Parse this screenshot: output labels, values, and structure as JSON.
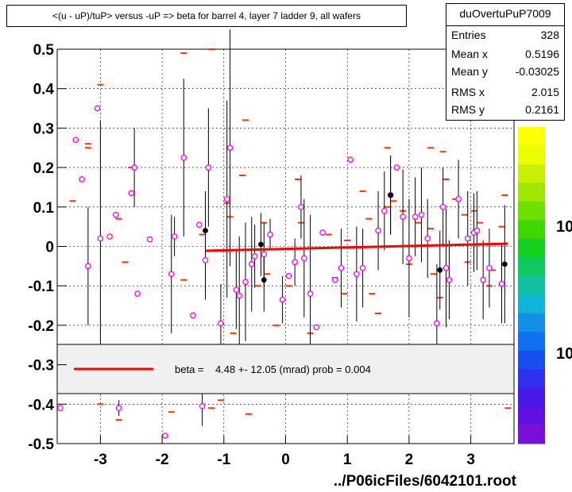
{
  "title": "<(u - uP)/tuP> versus  -uP => beta for barrel 4, layer 7 ladder 9, all wafers",
  "stats": {
    "name": "duOvertuPuP7009",
    "rows": [
      {
        "label": "Entries",
        "value": "328"
      },
      {
        "label": "Mean x",
        "value": "0.5196"
      },
      {
        "label": "Mean y",
        "value": "-0.03025"
      },
      {
        "label": "RMS x",
        "value": "2.015"
      },
      {
        "label": "RMS y",
        "value": "0.2161"
      }
    ]
  },
  "fit_legend": "beta =    4.48 +- 12.05 (mrad) prob = 0.004",
  "footer": "../P06icFiles/6042101.root",
  "colors": {
    "fit_line": "#ff0000",
    "marker_open": "#ff00ff",
    "marker_filled": "#000000",
    "hist_dash": "#ff3300"
  },
  "chart_data": {
    "type": "scatter",
    "xlim": [
      -3.7,
      3.7
    ],
    "ylim": [
      -0.5,
      0.5
    ],
    "x_ticks": [
      -3,
      -2,
      -1,
      0,
      1,
      2,
      3
    ],
    "x_tick_labels": [
      "-3",
      "-2",
      "-1",
      "0",
      "1",
      "2",
      "3"
    ],
    "y_ticks": [
      -0.5,
      -0.4,
      -0.3,
      -0.2,
      -0.1,
      0,
      0.1,
      0.2,
      0.3,
      0.4,
      0.5
    ],
    "y_tick_labels": [
      "-0.5",
      "-0.4",
      "-0.3",
      "-0.2",
      "-0.1",
      "0",
      "0.1",
      "0.2",
      "0.3",
      "0.4",
      "0.5"
    ],
    "grid": true,
    "colorbar_labels": [
      "10",
      "10"
    ],
    "fit_line": {
      "x": [
        -1.3,
        3.6
      ],
      "y": [
        -0.011,
        0.007
      ]
    },
    "points_open": [
      {
        "x": -3.65,
        "y": -0.41,
        "err": 0
      },
      {
        "x": -3.4,
        "y": 0.27,
        "err": 0
      },
      {
        "x": -3.3,
        "y": 0.17,
        "err": 0
      },
      {
        "x": -3.2,
        "y": -0.05,
        "err": 0.15
      },
      {
        "x": -3.05,
        "y": 0.35,
        "err": 0
      },
      {
        "x": -3.0,
        "y": 0.02,
        "err": 0.3
      },
      {
        "x": -2.85,
        "y": 0.025,
        "err": 0
      },
      {
        "x": -2.75,
        "y": 0.08,
        "err": 0
      },
      {
        "x": -2.7,
        "y": -0.41,
        "err": 0.02
      },
      {
        "x": -2.5,
        "y": 0.135,
        "err": 0
      },
      {
        "x": -2.45,
        "y": 0.2,
        "err": 0.1
      },
      {
        "x": -2.4,
        "y": -0.12,
        "err": 0
      },
      {
        "x": -2.2,
        "y": 0.018,
        "err": 0
      },
      {
        "x": -1.95,
        "y": -0.48,
        "err": 0
      },
      {
        "x": -1.85,
        "y": -0.07,
        "err": 0.15
      },
      {
        "x": -1.8,
        "y": 0.025,
        "err": 0.05
      },
      {
        "x": -1.65,
        "y": 0.225,
        "err": 0.2
      },
      {
        "x": -1.5,
        "y": -0.175,
        "err": 0
      },
      {
        "x": -1.4,
        "y": 0.055,
        "err": 0
      },
      {
        "x": -1.35,
        "y": -0.405,
        "err": 0.05
      },
      {
        "x": -1.3,
        "y": -0.035,
        "err": 0.1
      },
      {
        "x": -1.25,
        "y": 0.2,
        "err": 0.15
      },
      {
        "x": -1.05,
        "y": -0.195,
        "err": 0.1
      },
      {
        "x": -0.95,
        "y": 0.12,
        "err": 0.25
      },
      {
        "x": -0.9,
        "y": 0.25,
        "err": 0.3
      },
      {
        "x": -0.8,
        "y": -0.11,
        "err": 0.1
      },
      {
        "x": -0.75,
        "y": -0.125,
        "err": 0.15
      },
      {
        "x": -0.65,
        "y": -0.09,
        "err": 0.15
      },
      {
        "x": -0.55,
        "y": -0.045,
        "err": 0.12
      },
      {
        "x": -0.5,
        "y": -0.025,
        "err": 0.08
      },
      {
        "x": -0.35,
        "y": -0.02,
        "err": 0.08
      },
      {
        "x": -0.25,
        "y": 0.03,
        "err": 0.04
      },
      {
        "x": -0.05,
        "y": -0.135,
        "err": 0.06
      },
      {
        "x": 0.05,
        "y": -0.075,
        "err": 0
      },
      {
        "x": 0.15,
        "y": -0.04,
        "err": 0.06
      },
      {
        "x": 0.25,
        "y": 0.1,
        "err": 0.08
      },
      {
        "x": 0.3,
        "y": -0.03,
        "err": 0.15
      },
      {
        "x": 0.4,
        "y": -0.12,
        "err": 0.2
      },
      {
        "x": 0.5,
        "y": -0.205,
        "err": 0
      },
      {
        "x": 0.6,
        "y": 0.035,
        "err": 0
      },
      {
        "x": 0.8,
        "y": -0.085,
        "err": 0
      },
      {
        "x": 0.9,
        "y": -0.055,
        "err": 0.1
      },
      {
        "x": 1.05,
        "y": 0.22,
        "err": 0
      },
      {
        "x": 1.15,
        "y": -0.07,
        "err": 0.12
      },
      {
        "x": 1.25,
        "y": -0.055,
        "err": 0.1
      },
      {
        "x": 1.5,
        "y": 0.04,
        "err": 0.1
      },
      {
        "x": 1.6,
        "y": 0.09,
        "err": 0.1
      },
      {
        "x": 1.7,
        "y": 0.13,
        "err": 0.1
      },
      {
        "x": 1.8,
        "y": 0.2,
        "err": 0
      },
      {
        "x": 1.9,
        "y": 0.075,
        "err": 0.12
      },
      {
        "x": 2.0,
        "y": -0.03,
        "err": 0.15
      },
      {
        "x": 2.1,
        "y": 0.075,
        "err": 0.1
      },
      {
        "x": 2.2,
        "y": 0.08,
        "err": 0.12
      },
      {
        "x": 2.3,
        "y": 0.02,
        "err": 0.1
      },
      {
        "x": 2.45,
        "y": -0.195,
        "err": 0.15
      },
      {
        "x": 2.55,
        "y": 0.1,
        "err": 0.1
      },
      {
        "x": 2.6,
        "y": -0.055,
        "err": 0.15
      },
      {
        "x": 2.65,
        "y": -0.085,
        "err": 0.1
      },
      {
        "x": 2.8,
        "y": 0.12,
        "err": 0.1
      },
      {
        "x": 2.95,
        "y": 0.02,
        "err": 0.12
      },
      {
        "x": 3.05,
        "y": 0.035,
        "err": 0.1
      },
      {
        "x": 3.1,
        "y": 0.04,
        "err": 0.1
      },
      {
        "x": 3.2,
        "y": -0.085,
        "err": 0.1
      },
      {
        "x": 3.3,
        "y": -0.055,
        "err": 0.1
      },
      {
        "x": 3.5,
        "y": -0.095,
        "err": 0.1
      }
    ],
    "points_filled": [
      {
        "x": -1.3,
        "y": 0.04,
        "err": 0.1
      },
      {
        "x": -0.4,
        "y": 0.005,
        "err": 0.08
      },
      {
        "x": -0.35,
        "y": -0.085,
        "err": 0.08
      },
      {
        "x": 1.7,
        "y": 0.13,
        "err": 0.1
      },
      {
        "x": 2.5,
        "y": -0.06,
        "err": 0.1
      },
      {
        "x": 3.55,
        "y": -0.045,
        "err": 0.15
      }
    ],
    "dashes": [
      [
        -3.45,
        0.115
      ],
      [
        -3.2,
        0.25
      ],
      [
        -3.2,
        0.26
      ],
      [
        -3.0,
        0.41
      ],
      [
        -3.0,
        -0.4
      ],
      [
        -2.7,
        -0.44
      ],
      [
        -2.7,
        0.07
      ],
      [
        -2.6,
        -0.04
      ],
      [
        -2.5,
        0.2
      ],
      [
        -1.95,
        -0.48
      ],
      [
        -1.85,
        -0.42
      ],
      [
        -1.65,
        0.49
      ],
      [
        -1.65,
        -0.085
      ],
      [
        -1.35,
        0.03
      ],
      [
        -1.2,
        0.5
      ],
      [
        -1.2,
        -0.41
      ],
      [
        -1.05,
        -0.39
      ],
      [
        -0.95,
        0.11
      ],
      [
        -0.9,
        0.075
      ],
      [
        -0.85,
        -0.22
      ],
      [
        -0.7,
        0.18
      ],
      [
        -0.65,
        0.32
      ],
      [
        -0.6,
        -0.425
      ],
      [
        -0.45,
        -0.1
      ],
      [
        -0.35,
        0.06
      ],
      [
        -0.3,
        -0.07
      ],
      [
        -0.15,
        -0.2
      ],
      [
        0.05,
        -0.1
      ],
      [
        0.1,
        -0.3
      ],
      [
        0.2,
        0.17
      ],
      [
        0.25,
        0.06
      ],
      [
        0.35,
        -0.3
      ],
      [
        0.4,
        -0.22
      ],
      [
        0.7,
        0.03
      ],
      [
        0.8,
        -0.08
      ],
      [
        0.95,
        -0.12
      ],
      [
        1.0,
        0.015
      ],
      [
        1.25,
        0.14
      ],
      [
        1.35,
        0.07
      ],
      [
        1.4,
        -0.12
      ],
      [
        1.5,
        -0.17
      ],
      [
        1.65,
        0.25
      ],
      [
        1.65,
        0.1
      ],
      [
        1.75,
        0.115
      ],
      [
        1.9,
        0.09
      ],
      [
        2.0,
        -0.045
      ],
      [
        2.15,
        0.06
      ],
      [
        2.35,
        0.25
      ],
      [
        2.35,
        0.045
      ],
      [
        2.4,
        -0.07
      ],
      [
        2.5,
        -0.13
      ],
      [
        2.55,
        0.24
      ],
      [
        2.6,
        0.17
      ],
      [
        2.75,
        0.12
      ],
      [
        2.9,
        0.08
      ],
      [
        2.95,
        -0.04
      ],
      [
        3.05,
        0.09
      ],
      [
        3.15,
        0.06
      ],
      [
        3.3,
        -0.1
      ],
      [
        3.35,
        -0.06
      ],
      [
        3.5,
        0.05
      ],
      [
        3.55,
        0.13
      ],
      [
        3.6,
        -0.41
      ]
    ]
  }
}
